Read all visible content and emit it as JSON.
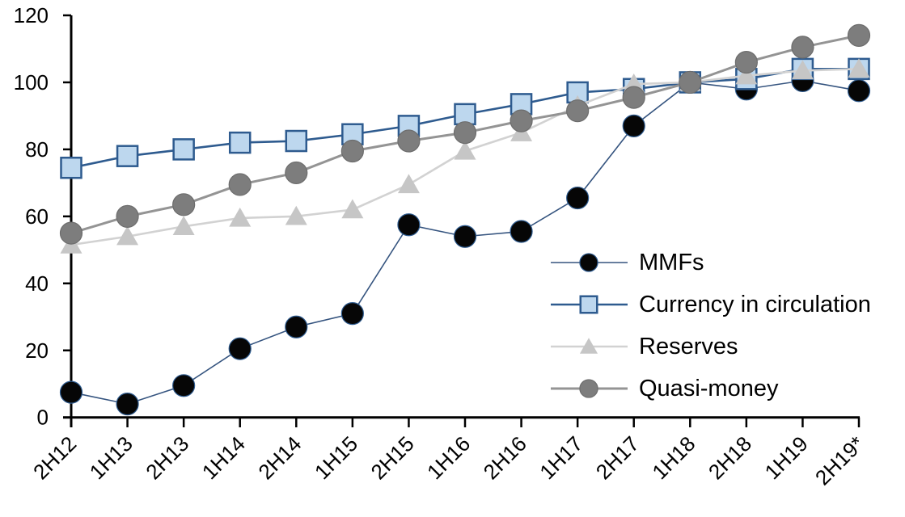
{
  "chart_data": {
    "type": "line",
    "title": "",
    "xlabel": "",
    "ylabel": "",
    "categories": [
      "2H12",
      "1H13",
      "2H13",
      "1H14",
      "2H14",
      "1H15",
      "2H15",
      "1H16",
      "2H16",
      "1H17",
      "2H17",
      "1H18",
      "2H18",
      "1H19",
      "2H19*"
    ],
    "series": [
      {
        "name": "MMFs",
        "marker": "circle",
        "marker_fill": "#060606",
        "marker_stroke": "#2e5b8f",
        "line_color": "#35547f",
        "line_width": 1.6,
        "marker_size": 27,
        "values": [
          7.5,
          4,
          9.5,
          20.5,
          27,
          31,
          57.5,
          54,
          55.5,
          65.5,
          87,
          100,
          98,
          100.5,
          97.5
        ]
      },
      {
        "name": "Currency in circulation",
        "marker": "square",
        "marker_fill": "#bdd7ee",
        "marker_stroke": "#2e5b8f",
        "line_color": "#2e5b8f",
        "line_width": 2.6,
        "marker_size": 25,
        "values": [
          74.5,
          78,
          80,
          82,
          82.5,
          84.5,
          87,
          90.5,
          93.5,
          97,
          98,
          100,
          101,
          104,
          104
        ]
      },
      {
        "name": "Reserves",
        "marker": "triangle",
        "marker_fill": "#c6c6c6",
        "marker_stroke": "none",
        "line_color": "#d2d2d2",
        "line_width": 2.6,
        "marker_size": 27,
        "values": [
          51.5,
          54,
          57,
          59.5,
          60,
          62,
          69.5,
          79.5,
          85,
          93,
          99.5,
          100,
          102,
          103.5,
          104
        ]
      },
      {
        "name": "Quasi-money",
        "marker": "circle",
        "marker_fill": "#7d7d7d",
        "marker_stroke": "#6d6d6d",
        "line_color": "#949494",
        "line_width": 3,
        "marker_size": 27,
        "values": [
          55,
          60,
          63.5,
          69.5,
          73,
          79.5,
          82.5,
          85,
          88.5,
          91.5,
          95.5,
          100,
          106,
          110.5,
          114
        ]
      }
    ],
    "y_axis": {
      "min": 0,
      "max": 120,
      "step": 20,
      "tick_labels": [
        "0",
        "20",
        "40",
        "60",
        "80",
        "100",
        "120"
      ]
    },
    "x_axis": {
      "tick_label_rotation": -45
    },
    "ylim": [
      0,
      120
    ],
    "grid": false,
    "legend": {
      "position": "inside-right",
      "items": [
        "MMFs",
        "Currency in circulation",
        "Reserves",
        "Quasi-money"
      ]
    },
    "note_suffix_on_last_category": "*"
  },
  "colors": {
    "axis": "#000000",
    "text": "#000000",
    "background": "#ffffff"
  }
}
